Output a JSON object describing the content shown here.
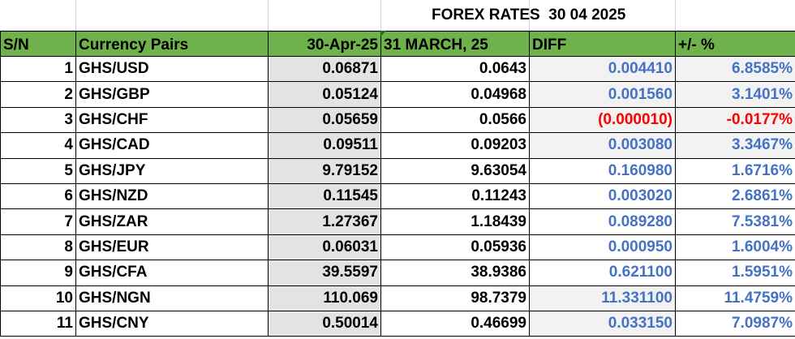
{
  "title": "FOREX RATES  30 04 2025",
  "headers": [
    "S/N",
    "Currency Pairs",
    "30-Apr-25",
    "31 MARCH, 25",
    "DIFF",
    "+/- %"
  ],
  "colors": {
    "header_bg": "#6fb24c",
    "positive": "#4472c4",
    "negative": "#ff0000"
  },
  "rows": [
    {
      "sn": "1",
      "pair": "GHS/USD",
      "apr": "0.06871",
      "mar": "0.0643",
      "diff": "0.004410",
      "pct": "6.8585%",
      "negative": false
    },
    {
      "sn": "2",
      "pair": "GHS/GBP",
      "apr": "0.05124",
      "mar": "0.04968",
      "diff": "0.001560",
      "pct": "3.1401%",
      "negative": false
    },
    {
      "sn": "3",
      "pair": "GHS/CHF",
      "apr": "0.05659",
      "mar": "0.0566",
      "diff": "(0.000010)",
      "pct": "-0.0177%",
      "negative": true
    },
    {
      "sn": "4",
      "pair": "GHS/CAD",
      "apr": "0.09511",
      "mar": "0.09203",
      "diff": "0.003080",
      "pct": "3.3467%",
      "negative": false
    },
    {
      "sn": "5",
      "pair": "GHS/JPY",
      "apr": "9.79152",
      "mar": "9.63054",
      "diff": "0.160980",
      "pct": "1.6716%",
      "negative": false
    },
    {
      "sn": "6",
      "pair": "GHS/NZD",
      "apr": "0.11545",
      "mar": "0.11243",
      "diff": "0.003020",
      "pct": "2.6861%",
      "negative": false
    },
    {
      "sn": "7",
      "pair": "GHS/ZAR",
      "apr": "1.27367",
      "mar": "1.18439",
      "diff": "0.089280",
      "pct": "7.5381%",
      "negative": false
    },
    {
      "sn": "8",
      "pair": "GHS/EUR",
      "apr": "0.06031",
      "mar": "0.05936",
      "diff": "0.000950",
      "pct": "1.6004%",
      "negative": false
    },
    {
      "sn": "9",
      "pair": "GHS/CFA",
      "apr": "39.5597",
      "mar": "38.9386",
      "diff": "0.621100",
      "pct": "1.5951%",
      "negative": false
    },
    {
      "sn": "10",
      "pair": "GHS/NGN",
      "apr": "110.069",
      "mar": "98.7379",
      "diff": "11.331100",
      "pct": "11.4759%",
      "negative": false
    },
    {
      "sn": "11",
      "pair": "GHS/CNY",
      "apr": "0.50014",
      "mar": "0.46699",
      "diff": "0.033150",
      "pct": "7.0987%",
      "negative": false
    }
  ]
}
